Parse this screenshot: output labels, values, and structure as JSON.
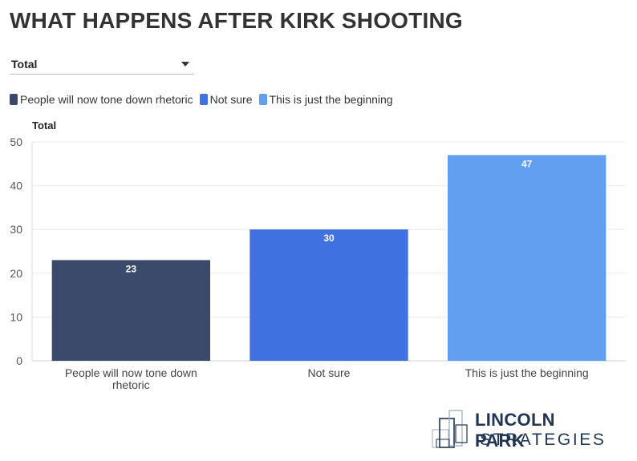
{
  "title": "WHAT HAPPENS AFTER KIRK SHOOTING",
  "filter": {
    "selected": "Total"
  },
  "legend": [
    {
      "label": "People will now tone down rhetoric",
      "color": "#3b4a6b"
    },
    {
      "label": "Not sure",
      "color": "#3f72e0"
    },
    {
      "label": "This is just the beginning",
      "color": "#629ff0"
    }
  ],
  "chart_label": "Total",
  "chart_data": {
    "type": "bar",
    "categories": [
      "People will now tone down rhetoric",
      "Not sure",
      "This is just the beginning"
    ],
    "category_lines": [
      [
        "People will now tone down",
        "rhetoric"
      ],
      [
        "Not sure"
      ],
      [
        "This is just the beginning"
      ]
    ],
    "values": [
      23,
      30,
      47
    ],
    "colors": [
      "#3b4a6b",
      "#3f72e0",
      "#629ff0"
    ],
    "ylim": [
      0,
      50
    ],
    "yticks": [
      0,
      10,
      20,
      30,
      40,
      50
    ],
    "grid": true
  },
  "logo": {
    "line1": "LINCOLN PARK",
    "line2": "STRATEGIES"
  }
}
